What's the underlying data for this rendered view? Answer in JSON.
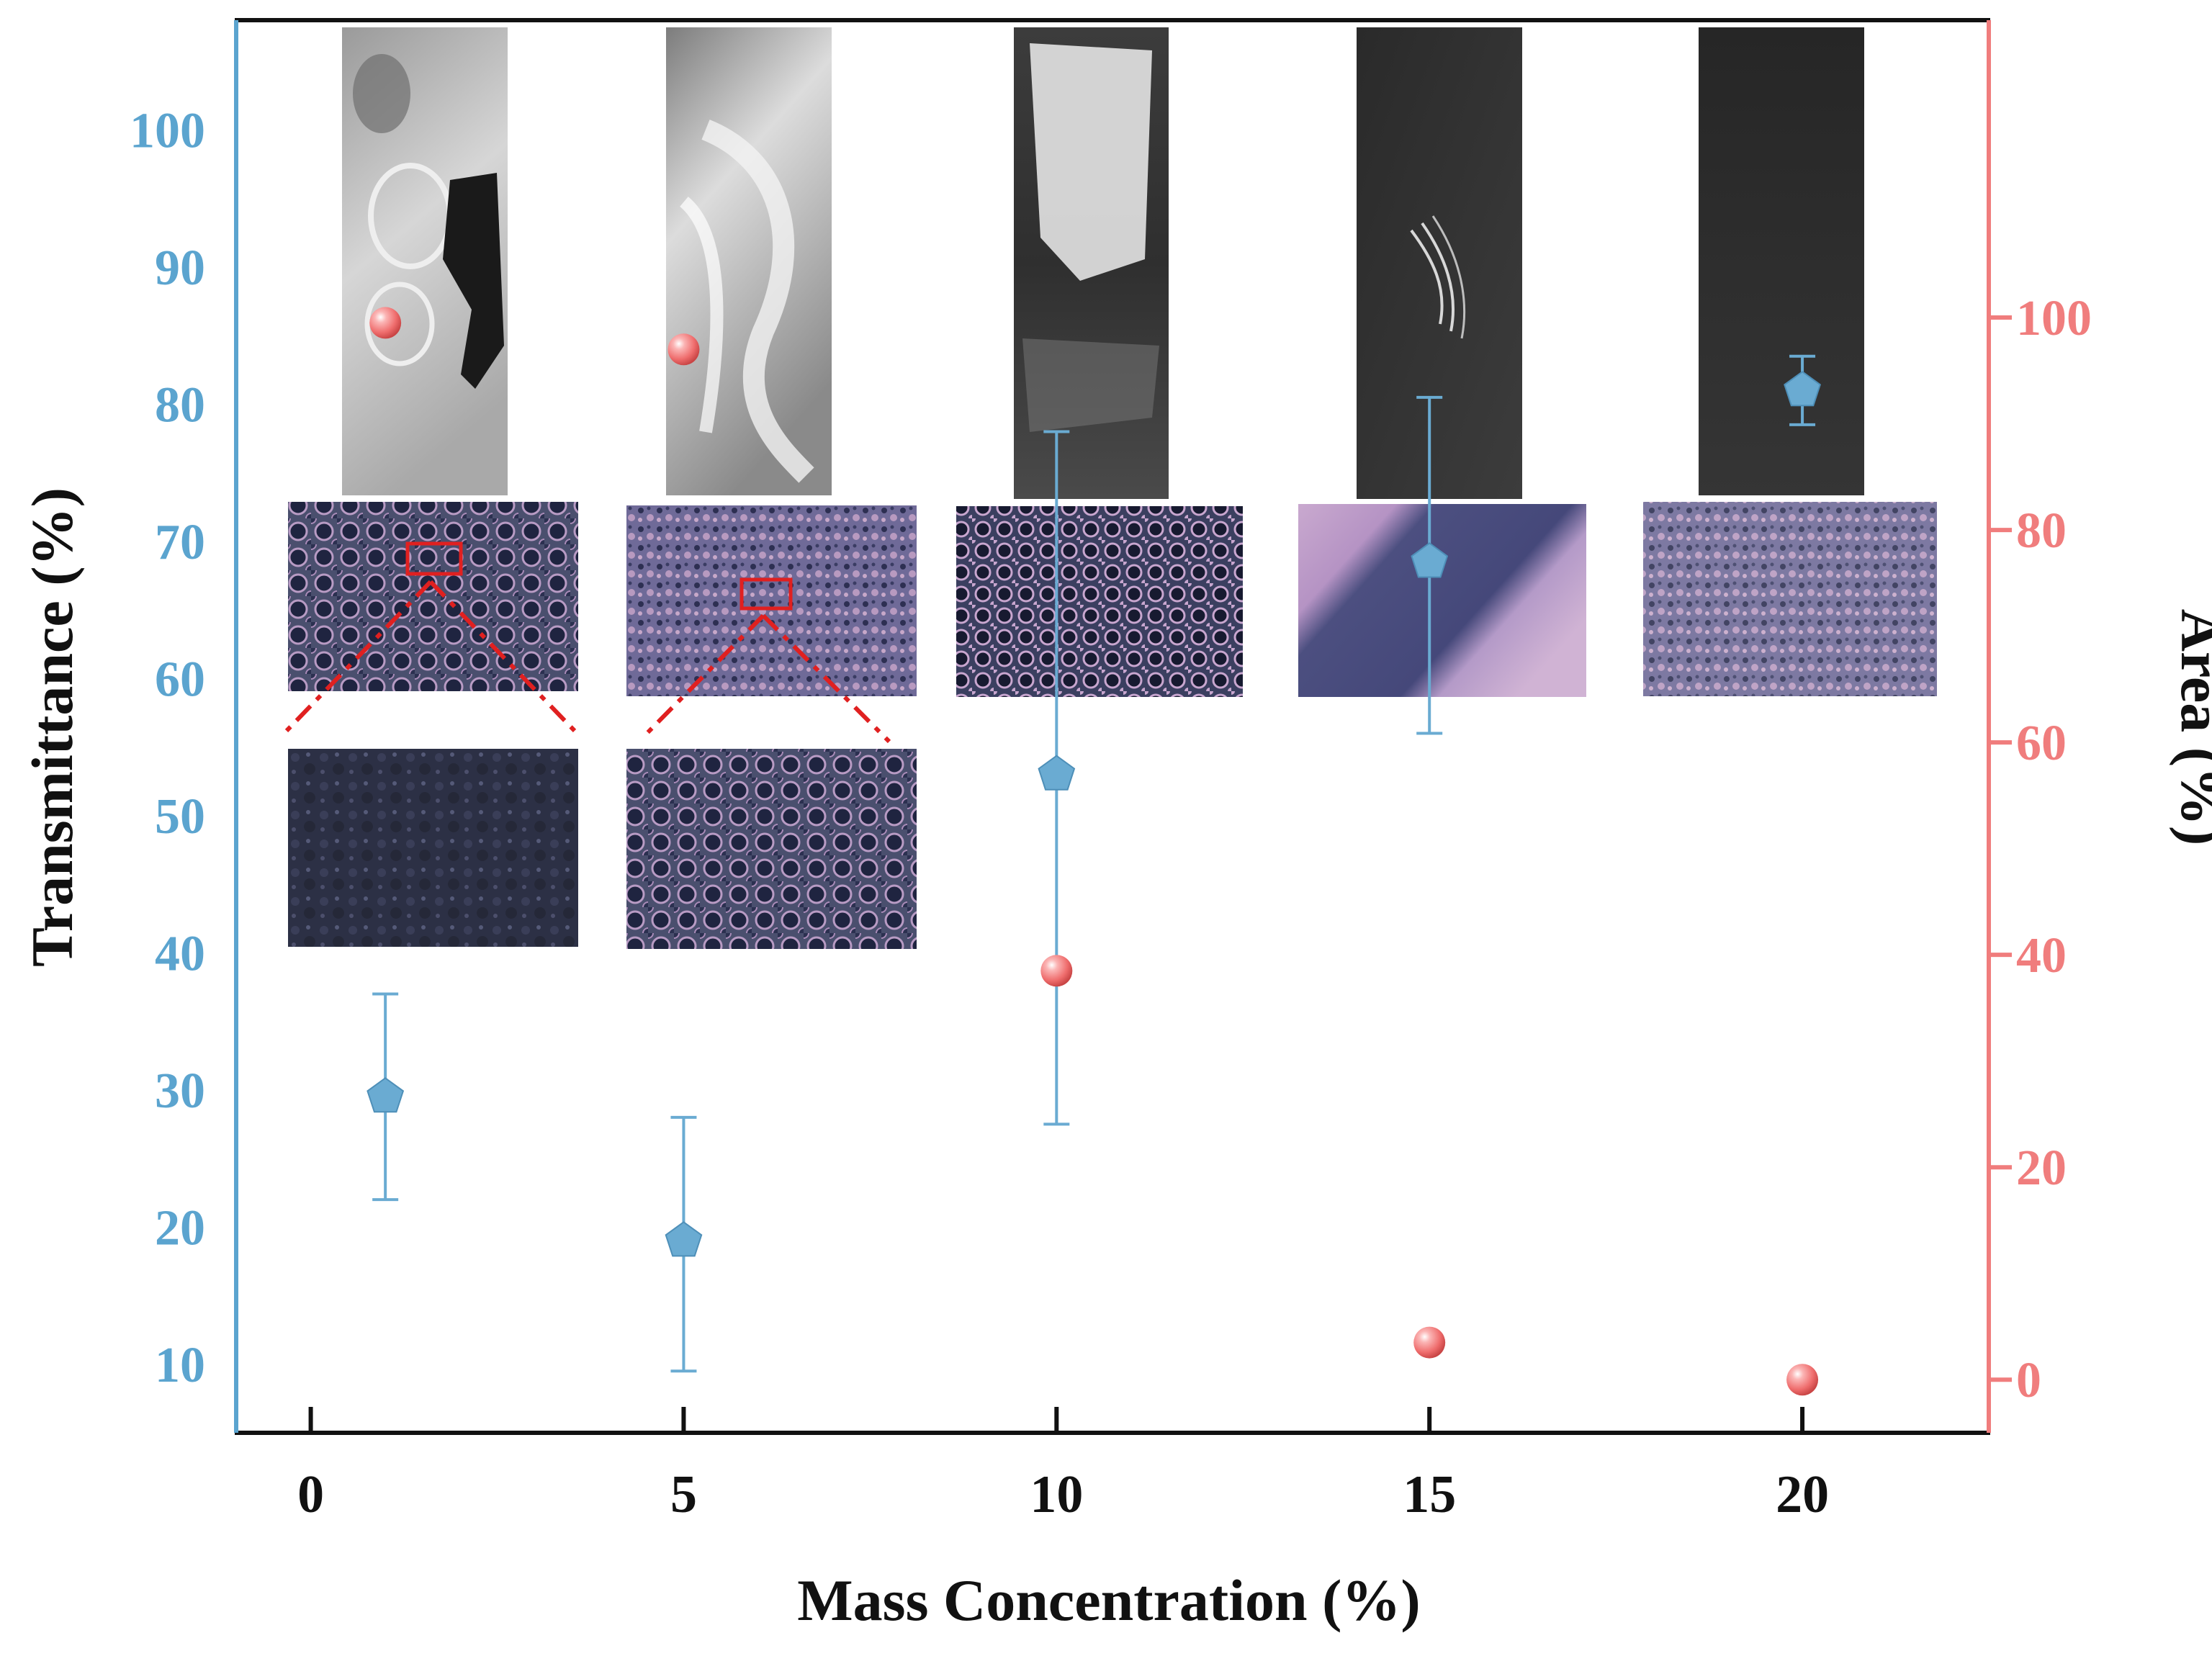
{
  "chart_data": {
    "type": "scatter",
    "title": "",
    "xlabel": "Mass Concentration (%)",
    "xlim": [
      -1,
      22.5
    ],
    "x_ticks": [
      0,
      5,
      10,
      15,
      20
    ],
    "left_axis": {
      "label": "Transmittance (%)",
      "range": [
        5,
        108
      ],
      "ticks": [
        10,
        20,
        30,
        40,
        50,
        60,
        70,
        80,
        90,
        100
      ],
      "color": "#5ba4cf"
    },
    "right_axis": {
      "label": "Area (%)",
      "range": [
        -5,
        128
      ],
      "ticks": [
        0,
        20,
        40,
        60,
        80,
        100
      ],
      "color": "#f07d7d"
    },
    "series": [
      {
        "name": "Transmittance",
        "axis": "left",
        "marker": "pentagon",
        "color": "#6aabd2",
        "points": [
          {
            "x": 1,
            "y": 29.5,
            "err_low": 22,
            "err_high": 37
          },
          {
            "x": 5,
            "y": 19,
            "err_low": 9.5,
            "err_high": 28
          },
          {
            "x": 10,
            "y": 53,
            "err_low": 27.5,
            "err_high": 78
          },
          {
            "x": 15,
            "y": 68.5,
            "err_low": 56,
            "err_high": 80.5
          },
          {
            "x": 20,
            "y": 81,
            "err_low": 78.5,
            "err_high": 83.5
          }
        ]
      },
      {
        "name": "Area",
        "axis": "right",
        "marker": "sphere",
        "color": "#f07d7d",
        "points": [
          {
            "x": 1,
            "y": 99.5
          },
          {
            "x": 5,
            "y": 97
          },
          {
            "x": 10,
            "y": 38.5
          },
          {
            "x": 15,
            "y": 3.5
          },
          {
            "x": 20,
            "y": 0
          }
        ]
      }
    ],
    "photo_insets": [
      {
        "concentration": 0,
        "sample": "coating-photo",
        "micrograph": "top",
        "zoom": "bottom"
      },
      {
        "concentration": 5,
        "sample": "coating-photo",
        "micrograph": "top",
        "zoom": "bottom"
      },
      {
        "concentration": 10,
        "sample": "coating-photo",
        "micrograph": "top"
      },
      {
        "concentration": 15,
        "sample": "coating-photo",
        "micrograph": "top"
      },
      {
        "concentration": 20,
        "sample": "coating-photo",
        "micrograph": "top"
      }
    ]
  }
}
